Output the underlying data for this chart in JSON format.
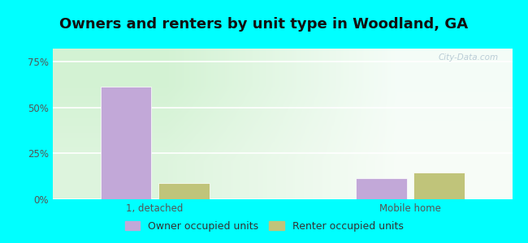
{
  "title": "Owners and renters by unit type in Woodland, GA",
  "categories": [
    "1, detached",
    "Mobile home"
  ],
  "owner_values": [
    0.615,
    0.115
  ],
  "renter_values": [
    0.09,
    0.145
  ],
  "owner_color": "#c2a8d8",
  "renter_color": "#c0c47a",
  "yticks": [
    0,
    0.25,
    0.5,
    0.75
  ],
  "ytick_labels": [
    "0%",
    "25%",
    "50%",
    "75%"
  ],
  "ylim": [
    0,
    0.82
  ],
  "outer_bg": "#00FFFF",
  "watermark": "City-Data.com",
  "legend_owner": "Owner occupied units",
  "legend_renter": "Renter occupied units",
  "bar_width": 0.3,
  "group_positions": [
    1.0,
    2.5
  ],
  "xlim": [
    0.4,
    3.1
  ],
  "title_fontsize": 13,
  "tick_fontsize": 8.5,
  "legend_fontsize": 9
}
